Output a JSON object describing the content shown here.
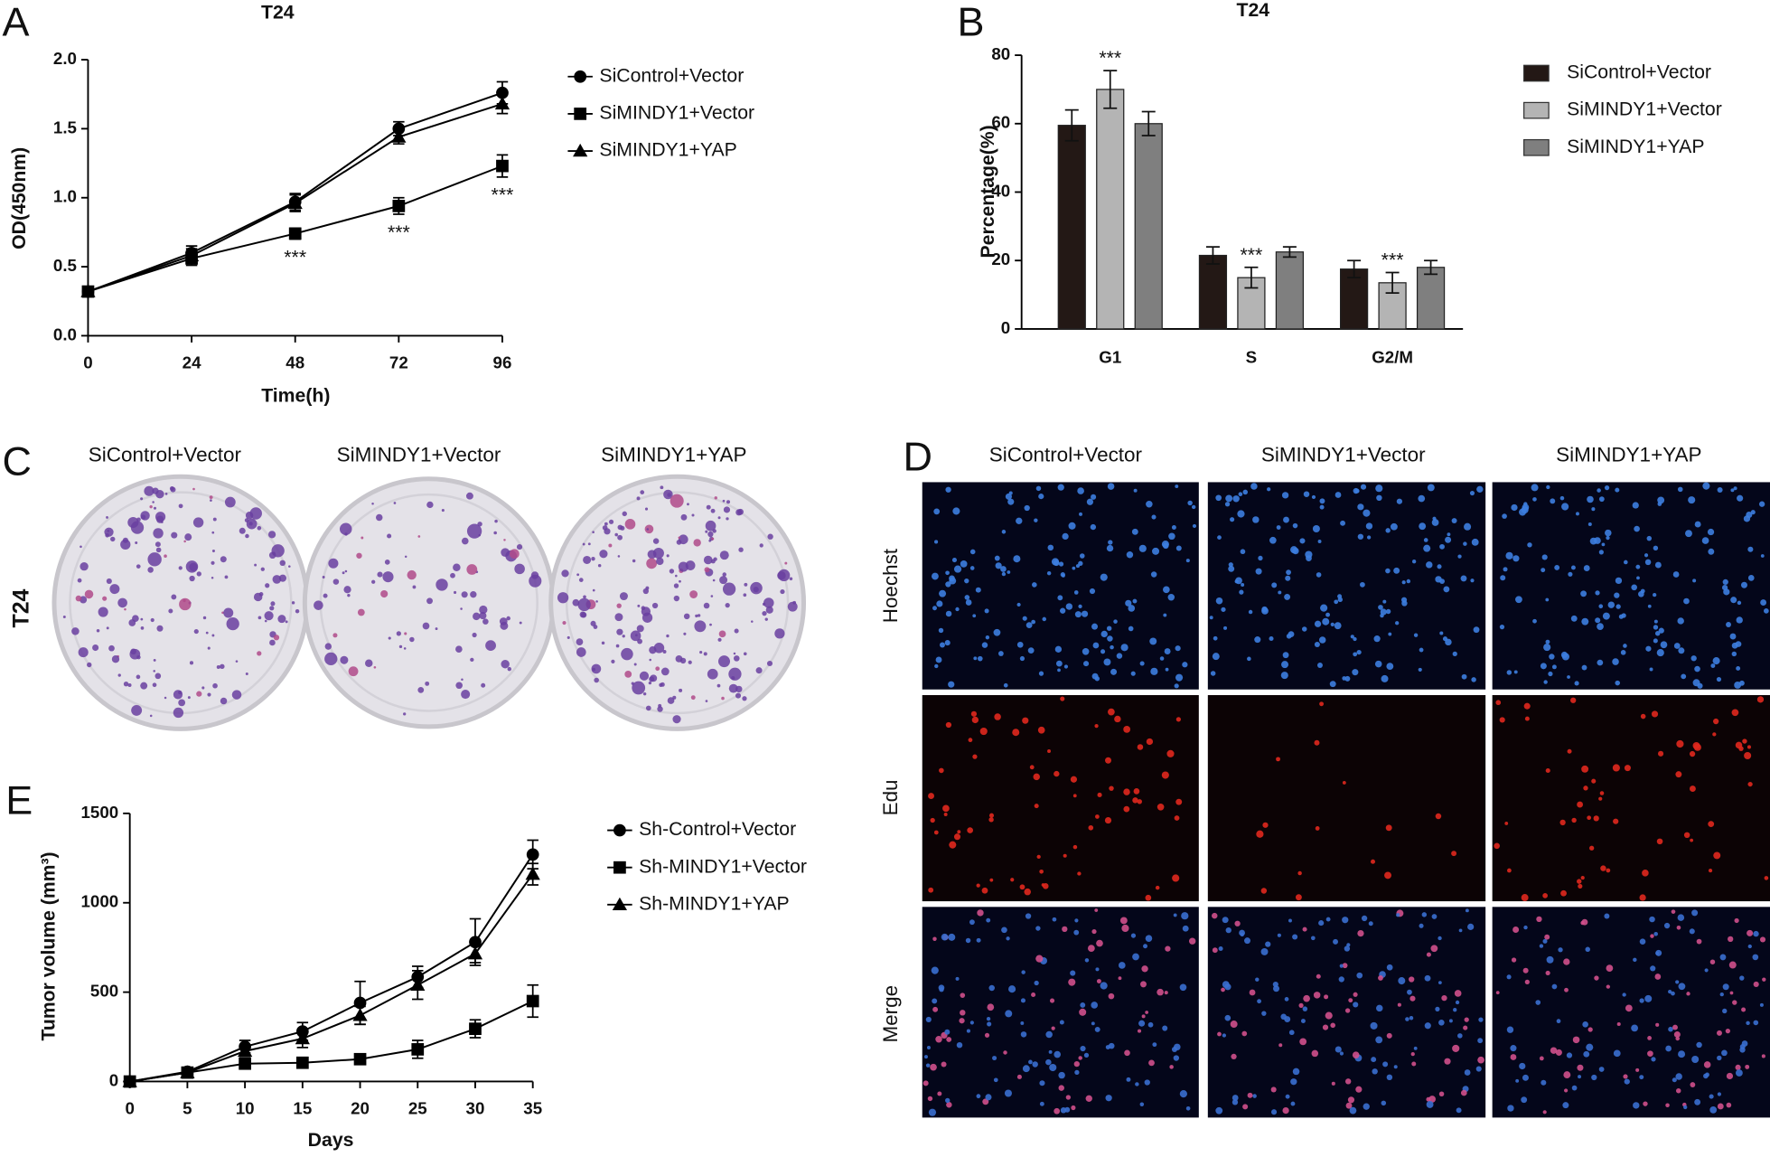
{
  "chart_data": [
    {
      "type": "line",
      "panel_label": "A",
      "title": "T24",
      "xlabel": "Time(h)",
      "ylabel": "OD(450nm)",
      "x": [
        0,
        24,
        48,
        72,
        96
      ],
      "xlim": [
        0,
        96
      ],
      "xticks": [
        0,
        24,
        48,
        72,
        96
      ],
      "ylim": [
        0,
        2
      ],
      "yticks": [
        {
          "value": 0,
          "label": "0.0"
        },
        0.5,
        {
          "value": 1,
          "label": "1.0"
        },
        1.5,
        {
          "value": 2,
          "label": "2.0"
        }
      ],
      "series": [
        {
          "name": "SiControl+Vector",
          "color": "#000000",
          "marker": "circle",
          "values": [
            0.32,
            0.6,
            0.97,
            1.5,
            1.76
          ],
          "errors": [
            0.03,
            0.05,
            0.06,
            0.05,
            0.08
          ]
        },
        {
          "name": "SiMINDY1+Vector",
          "color": "#000000",
          "marker": "square",
          "values": [
            0.32,
            0.56,
            0.74,
            0.94,
            1.23
          ],
          "errors": [
            0.03,
            0.05,
            0.04,
            0.06,
            0.08
          ]
        },
        {
          "name": "SiMINDY1+YAP",
          "color": "#000000",
          "marker": "triangle",
          "values": [
            0.32,
            0.58,
            0.96,
            1.44,
            1.68
          ],
          "errors": [
            0.03,
            0.05,
            0.06,
            0.05,
            0.07
          ]
        }
      ],
      "annotations": [
        {
          "text": "***",
          "x": 48
        },
        {
          "text": "***",
          "x": 72
        },
        {
          "text": "***",
          "x": 96
        }
      ]
    },
    {
      "type": "bar",
      "panel_label": "B",
      "title": "T24",
      "ylabel": "Percentage(%)",
      "categories": [
        "G1",
        "S",
        "G2/M"
      ],
      "ylim": [
        0,
        80
      ],
      "yticks": [
        0,
        20,
        40,
        60,
        80
      ],
      "series": [
        {
          "name": "SiControl+Vector",
          "color": "#231815",
          "values": [
            59.5,
            21.5,
            17.5
          ],
          "errors": [
            4.5,
            2.5,
            2.5
          ]
        },
        {
          "name": "SiMINDY1+Vector",
          "color": "#b4b4b4",
          "values": [
            70,
            15,
            13.5
          ],
          "errors": [
            5.5,
            3,
            3
          ]
        },
        {
          "name": "SiMINDY1+YAP",
          "color": "#7f7f7f",
          "values": [
            60,
            22.5,
            18
          ],
          "errors": [
            3.5,
            1.5,
            2
          ]
        }
      ],
      "annotations": [
        {
          "text": "***",
          "x": "G1"
        },
        {
          "text": "***",
          "x": "S"
        },
        {
          "text": "***",
          "x": "G2/M"
        }
      ]
    },
    {
      "type": "line",
      "panel_label": "E",
      "xlabel": "Days",
      "ylabel": "Tumor volume (mm³)",
      "x": [
        0,
        5,
        10,
        15,
        20,
        25,
        30,
        35
      ],
      "xlim": [
        0,
        35
      ],
      "xticks": [
        0,
        5,
        10,
        15,
        20,
        25,
        30,
        35
      ],
      "ylim": [
        0,
        1500
      ],
      "yticks": [
        0,
        500,
        1000,
        1500
      ],
      "series": [
        {
          "name": "Sh-Control+Vector",
          "color": "#000000",
          "marker": "circle",
          "values": [
            0,
            55,
            195,
            280,
            440,
            585,
            780,
            1270
          ],
          "errors": [
            0,
            15,
            35,
            50,
            120,
            60,
            130,
            80
          ]
        },
        {
          "name": "Sh-MINDY1+Vector",
          "color": "#000000",
          "marker": "square",
          "values": [
            0,
            50,
            100,
            105,
            125,
            180,
            295,
            450
          ],
          "errors": [
            0,
            10,
            25,
            20,
            25,
            50,
            50,
            90
          ]
        },
        {
          "name": "Sh-MINDY1+YAP",
          "color": "#000000",
          "marker": "triangle",
          "values": [
            0,
            50,
            170,
            240,
            370,
            540,
            715,
            1160
          ],
          "errors": [
            0,
            10,
            30,
            50,
            50,
            80,
            50,
            60
          ]
        }
      ]
    }
  ],
  "panels": {
    "C": {
      "label": "C",
      "columns": [
        "SiControl+Vector",
        "SiMINDY1+Vector",
        "SiMINDY1+YAP"
      ],
      "row_label": "T24"
    },
    "D": {
      "label": "D",
      "columns": [
        "SiControl+Vector",
        "SiMINDY1+Vector",
        "SiMINDY1+YAP"
      ],
      "rows": [
        "Hoechst",
        "Edu",
        "Merge"
      ]
    }
  }
}
